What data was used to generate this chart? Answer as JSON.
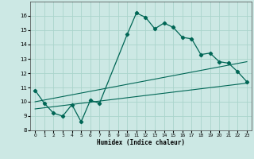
{
  "title": "",
  "xlabel": "Humidex (Indice chaleur)",
  "background_color": "#cce8e4",
  "grid_color": "#aad4cc",
  "line_color": "#006655",
  "xlim": [
    -0.5,
    23.5
  ],
  "ylim": [
    8,
    17
  ],
  "xticks": [
    0,
    1,
    2,
    3,
    4,
    5,
    6,
    7,
    8,
    9,
    10,
    11,
    12,
    13,
    14,
    15,
    16,
    17,
    18,
    19,
    20,
    21,
    22,
    23
  ],
  "yticks": [
    8,
    9,
    10,
    11,
    12,
    13,
    14,
    15,
    16
  ],
  "line1_x": [
    0,
    1,
    2,
    3,
    4,
    5,
    6,
    7,
    10,
    11,
    12,
    13,
    14,
    15,
    16,
    17,
    18,
    19,
    20,
    21,
    22,
    23
  ],
  "line1_y": [
    10.8,
    9.9,
    9.2,
    9.0,
    9.8,
    8.6,
    10.1,
    9.9,
    14.7,
    16.2,
    15.9,
    15.1,
    15.5,
    15.2,
    14.5,
    14.4,
    13.3,
    13.4,
    12.8,
    12.7,
    12.1,
    11.4
  ],
  "line2_x": [
    0,
    23
  ],
  "line2_y": [
    9.5,
    11.3
  ],
  "line3_x": [
    0,
    23
  ],
  "line3_y": [
    10.0,
    12.8
  ]
}
